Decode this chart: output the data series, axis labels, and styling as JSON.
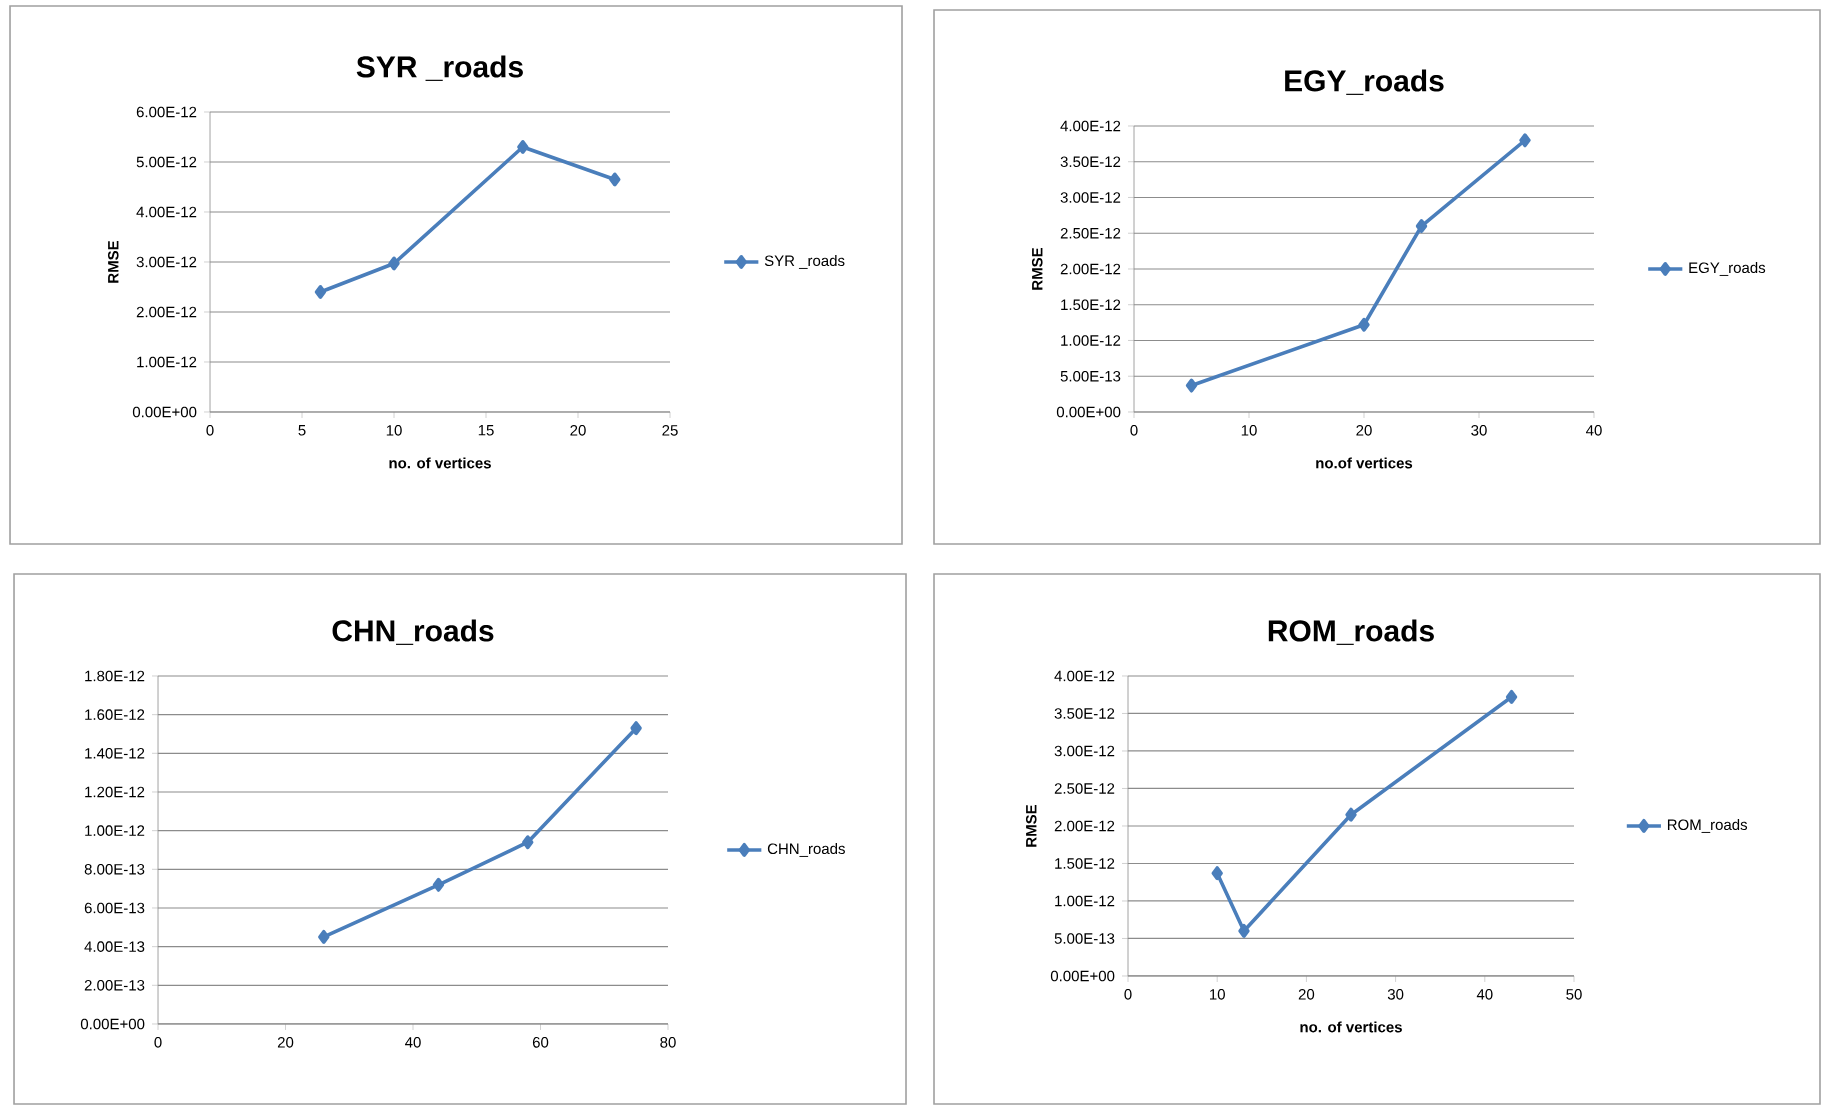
{
  "chart_data": [
    {
      "type": "line",
      "title": "SYR _roads",
      "xlabel": "no. of vertices",
      "ylabel": "RMSE",
      "x": [
        6,
        10,
        17,
        22
      ],
      "series": [
        {
          "name": "SYR _roads",
          "color": "#4a7ebb",
          "values": [
            2.4e-12,
            2.97e-12,
            5.3e-12,
            4.65e-12
          ]
        }
      ],
      "xlim": [
        0,
        25
      ],
      "xticks": [
        0,
        5,
        10,
        15,
        20,
        25
      ],
      "ylim": [
        0,
        6e-12
      ],
      "yticks": [
        {
          "value": 0,
          "label": "0.00E+00"
        },
        {
          "value": 1e-12,
          "label": "1.00E-12"
        },
        {
          "value": 2e-12,
          "label": "2.00E-12"
        },
        {
          "value": 3e-12,
          "label": "3.00E-12"
        },
        {
          "value": 4e-12,
          "label": "4.00E-12"
        },
        {
          "value": 5e-12,
          "label": "5.00E-12"
        },
        {
          "value": 6e-12,
          "label": "6.00E-12"
        }
      ],
      "grid": "y",
      "legend": "right",
      "marker": "diamond",
      "line_style": "solid"
    },
    {
      "type": "line",
      "title": "EGY_roads",
      "xlabel": "no.of vertices",
      "ylabel": "RMSE",
      "x": [
        5,
        20,
        25,
        34
      ],
      "series": [
        {
          "name": "EGY_roads",
          "color": "#4a7ebb",
          "values": [
            3.7e-13,
            1.22e-12,
            2.6e-12,
            3.8e-12
          ]
        }
      ],
      "xlim": [
        0,
        40
      ],
      "xticks": [
        0,
        10,
        20,
        30,
        40
      ],
      "ylim": [
        0,
        4e-12
      ],
      "yticks": [
        {
          "value": 0,
          "label": "0.00E+00"
        },
        {
          "value": 5e-13,
          "label": "5.00E-13"
        },
        {
          "value": 1e-12,
          "label": "1.00E-12"
        },
        {
          "value": 1.5e-12,
          "label": "1.50E-12"
        },
        {
          "value": 2e-12,
          "label": "2.00E-12"
        },
        {
          "value": 2.5e-12,
          "label": "2.50E-12"
        },
        {
          "value": 3e-12,
          "label": "3.00E-12"
        },
        {
          "value": 3.5e-12,
          "label": "3.50E-12"
        },
        {
          "value": 4e-12,
          "label": "4.00E-12"
        }
      ],
      "grid": "y",
      "legend": "right",
      "marker": "diamond",
      "line_style": "solid"
    },
    {
      "type": "line",
      "title": "CHN_roads",
      "x": [
        26,
        44,
        58,
        75
      ],
      "series": [
        {
          "name": "CHN_roads",
          "color": "#4a7ebb",
          "values": [
            4.5e-13,
            7.2e-13,
            9.4e-13,
            1.53e-12
          ]
        }
      ],
      "xlim": [
        0,
        80
      ],
      "xticks": [
        0,
        20,
        40,
        60,
        80
      ],
      "ylim": [
        0,
        1.8e-12
      ],
      "yticks": [
        {
          "value": 0,
          "label": "0.00E+00"
        },
        {
          "value": 2e-13,
          "label": "2.00E-13"
        },
        {
          "value": 4e-13,
          "label": "4.00E-13"
        },
        {
          "value": 6e-13,
          "label": "6.00E-13"
        },
        {
          "value": 8e-13,
          "label": "8.00E-13"
        },
        {
          "value": 1e-12,
          "label": "1.00E-12"
        },
        {
          "value": 1.2e-12,
          "label": "1.20E-12"
        },
        {
          "value": 1.4e-12,
          "label": "1.40E-12"
        },
        {
          "value": 1.6e-12,
          "label": "1.60E-12"
        },
        {
          "value": 1.8e-12,
          "label": "1.80E-12"
        }
      ],
      "grid": "y",
      "legend": "right",
      "marker": "diamond",
      "line_style": "solid"
    },
    {
      "type": "line",
      "title": "ROM_roads",
      "xlabel": "no. of vertices",
      "ylabel": "RMSE",
      "x": [
        10,
        13,
        25,
        43
      ],
      "series": [
        {
          "name": "ROM_roads",
          "color": "#4a7ebb",
          "values": [
            1.37e-12,
            6e-13,
            2.15e-12,
            3.72e-12
          ]
        }
      ],
      "xlim": [
        0,
        50
      ],
      "xticks": [
        0,
        10,
        20,
        30,
        40,
        50
      ],
      "ylim": [
        0,
        4e-12
      ],
      "yticks": [
        {
          "value": 0,
          "label": "0.00E+00"
        },
        {
          "value": 5e-13,
          "label": "5.00E-13"
        },
        {
          "value": 1e-12,
          "label": "1.00E-12"
        },
        {
          "value": 1.5e-12,
          "label": "1.50E-12"
        },
        {
          "value": 2e-12,
          "label": "2.00E-12"
        },
        {
          "value": 2.5e-12,
          "label": "2.50E-12"
        },
        {
          "value": 3e-12,
          "label": "3.00E-12"
        },
        {
          "value": 3.5e-12,
          "label": "3.50E-12"
        },
        {
          "value": 4e-12,
          "label": "4.00E-12"
        }
      ],
      "grid": "y",
      "legend": "right",
      "marker": "diamond",
      "line_style": "solid"
    }
  ]
}
